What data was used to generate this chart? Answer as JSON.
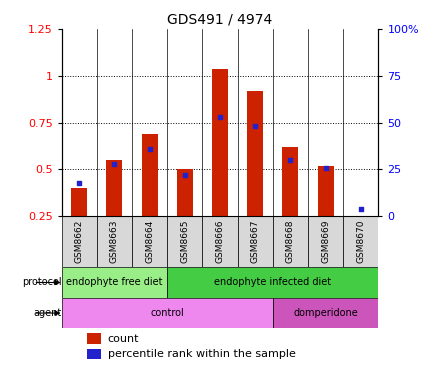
{
  "title": "GDS491 / 4974",
  "samples": [
    "GSM8662",
    "GSM8663",
    "GSM8664",
    "GSM8665",
    "GSM8666",
    "GSM8667",
    "GSM8668",
    "GSM8669",
    "GSM8670"
  ],
  "count_values": [
    0.4,
    0.55,
    0.69,
    0.5,
    1.04,
    0.92,
    0.62,
    0.52,
    0.25
  ],
  "percentile_values": [
    18,
    28,
    36,
    22,
    53,
    48,
    30,
    26,
    4
  ],
  "ylim_left": [
    0.25,
    1.25
  ],
  "ylim_right": [
    0,
    100
  ],
  "yticks_left": [
    0.25,
    0.5,
    0.75,
    1.0,
    1.25
  ],
  "ytick_labels_left": [
    "0.25",
    "0.5",
    "0.75",
    "1",
    "1.25"
  ],
  "yticks_right": [
    0,
    25,
    50,
    75,
    100
  ],
  "ytick_labels_right": [
    "0",
    "25",
    "50",
    "75",
    "100%"
  ],
  "hgrid_values": [
    0.5,
    0.75,
    1.0
  ],
  "bar_color": "#cc2200",
  "marker_color": "#2222cc",
  "bg_color": "#ffffff",
  "protocol_groups": [
    {
      "label": "endophyte free diet",
      "start": 0,
      "end": 3,
      "color": "#99ee88"
    },
    {
      "label": "endophyte infected diet",
      "start": 3,
      "end": 9,
      "color": "#44cc44"
    }
  ],
  "agent_groups": [
    {
      "label": "control",
      "start": 0,
      "end": 6,
      "color": "#ee88ee"
    },
    {
      "label": "domperidone",
      "start": 6,
      "end": 9,
      "color": "#cc55bb"
    }
  ],
  "protocol_label": "protocol",
  "agent_label": "agent",
  "legend_count_label": "count",
  "legend_percentile_label": "percentile rank within the sample",
  "bar_width": 0.45
}
